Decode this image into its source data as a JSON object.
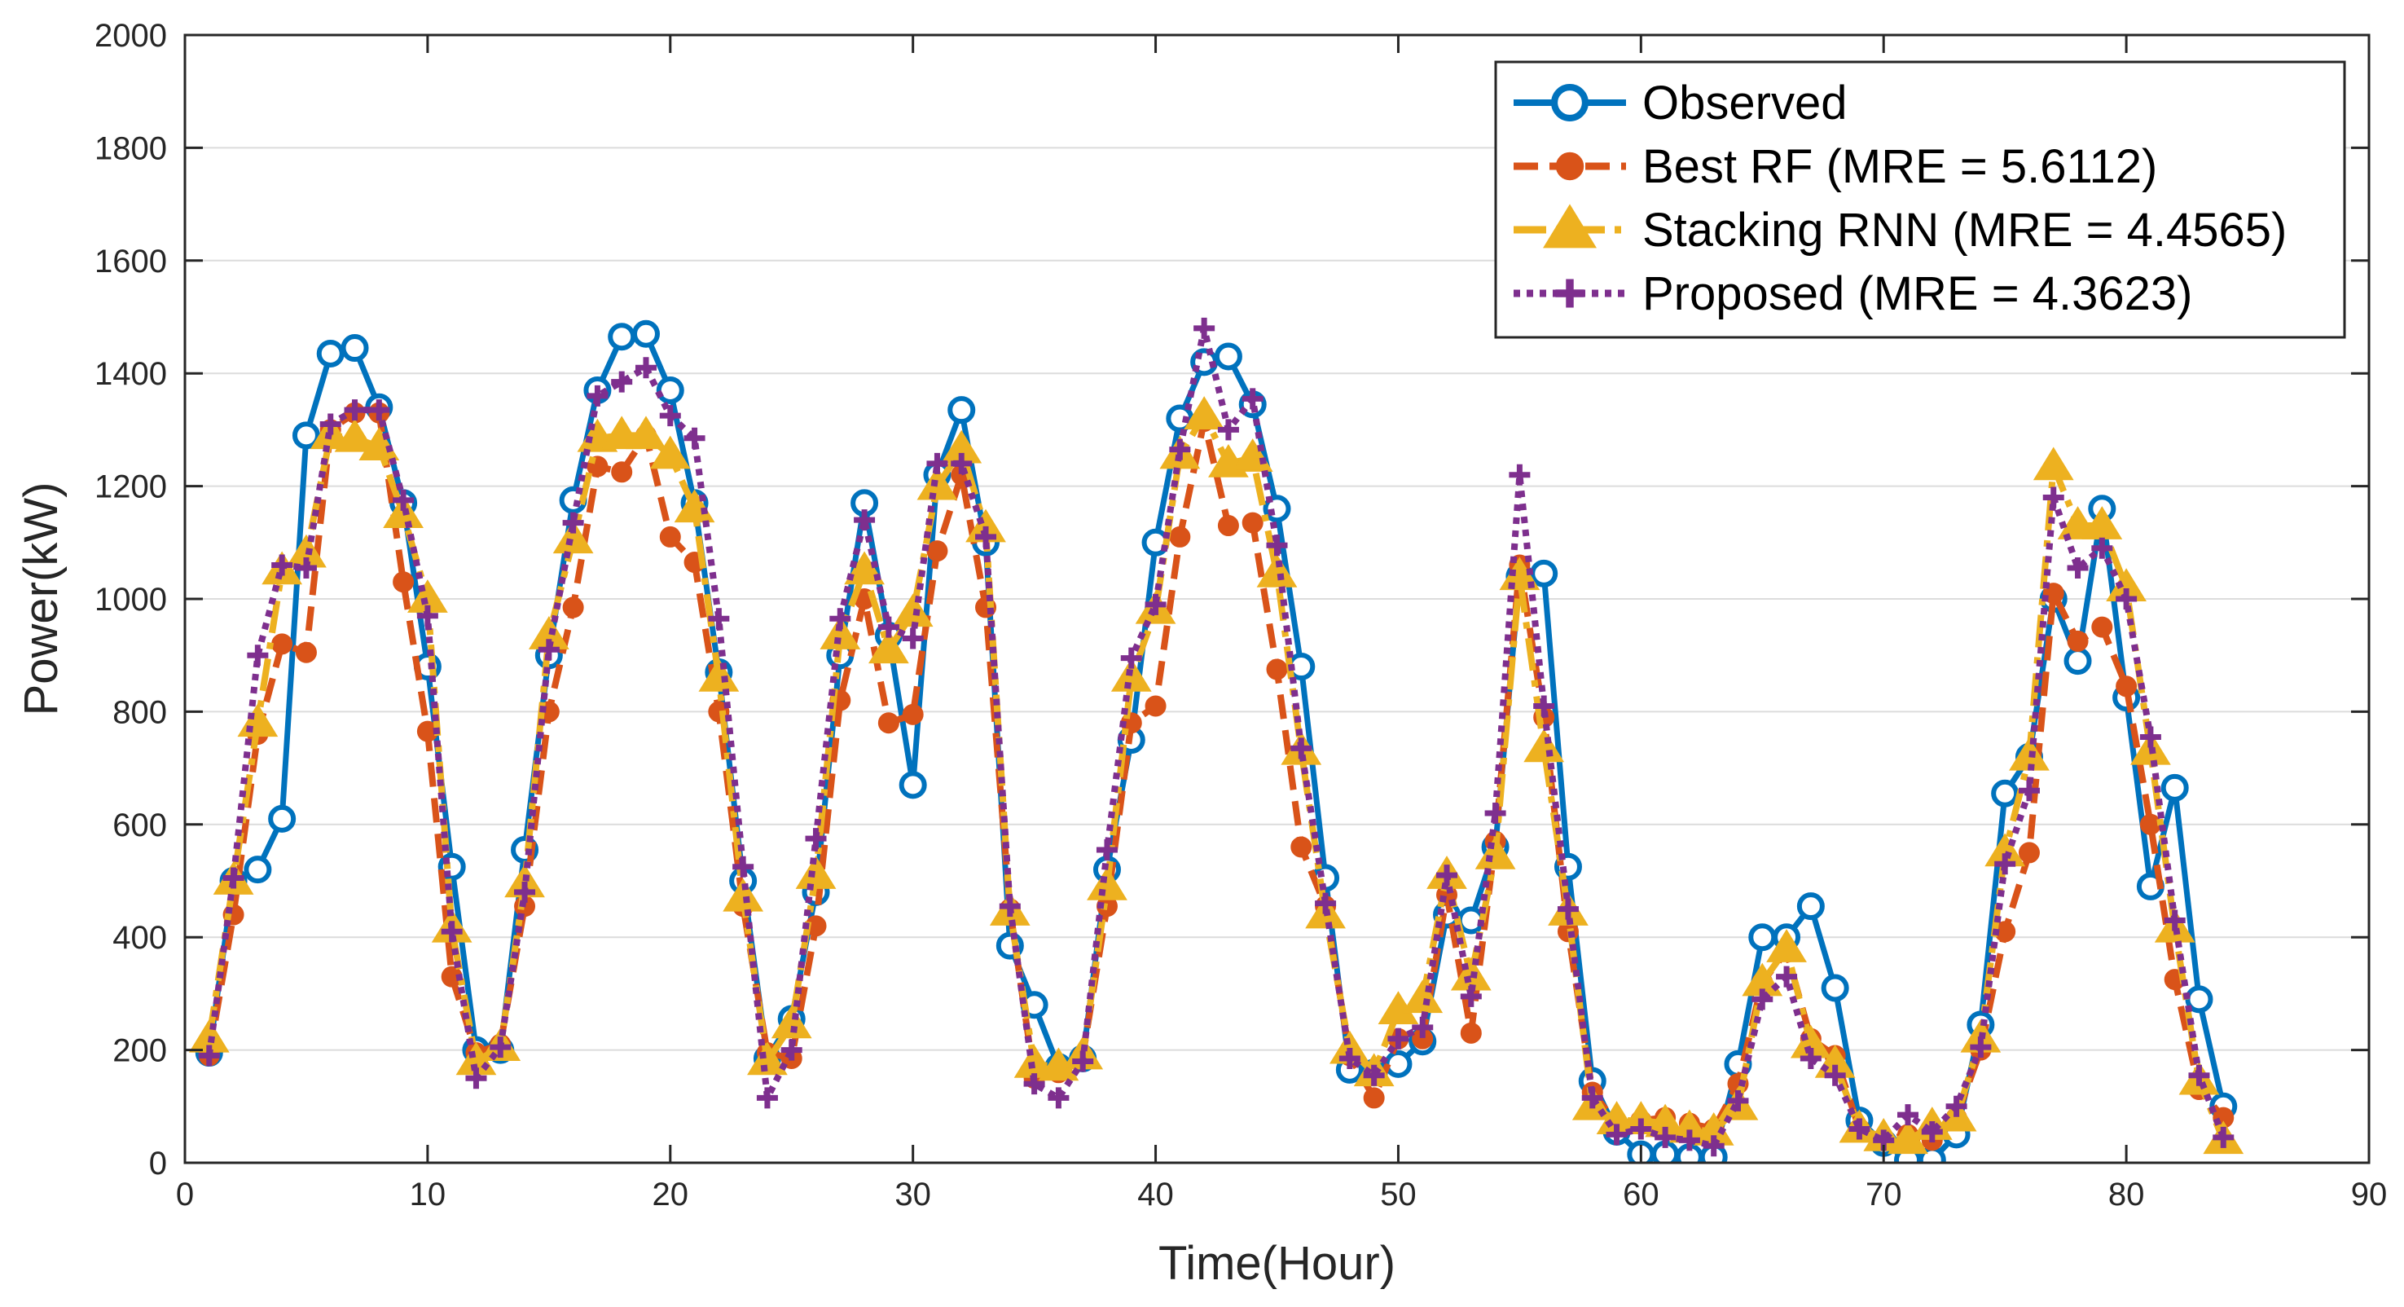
{
  "chart_data": {
    "type": "line",
    "title": "",
    "xlabel": "Time(Hour)",
    "ylabel": "Power(kW)",
    "xlim": [
      0,
      90
    ],
    "ylim": [
      0,
      2000
    ],
    "xticks": [
      0,
      10,
      20,
      30,
      40,
      50,
      60,
      70,
      80,
      90
    ],
    "yticks": [
      0,
      200,
      400,
      600,
      800,
      1000,
      1200,
      1400,
      1600,
      1800,
      2000
    ],
    "grid": "horizontal",
    "legend_position": "top-right",
    "x": [
      1,
      2,
      3,
      4,
      5,
      6,
      7,
      8,
      9,
      10,
      11,
      12,
      13,
      14,
      15,
      16,
      17,
      18,
      19,
      20,
      21,
      22,
      23,
      24,
      25,
      26,
      27,
      28,
      29,
      30,
      31,
      32,
      33,
      34,
      35,
      36,
      37,
      38,
      39,
      40,
      41,
      42,
      43,
      44,
      45,
      46,
      47,
      48,
      49,
      50,
      51,
      52,
      53,
      54,
      55,
      56,
      57,
      58,
      59,
      60,
      61,
      62,
      63,
      64,
      65,
      66,
      67,
      68,
      69,
      70,
      71,
      72,
      73,
      74,
      75,
      76,
      77,
      78,
      79,
      80,
      81,
      82,
      83,
      84
    ],
    "series": [
      {
        "name": "Observed",
        "color": "#0072BD",
        "marker": "circle",
        "line": "solid",
        "values": [
          195,
          500,
          520,
          610,
          1290,
          1435,
          1445,
          1340,
          1170,
          880,
          525,
          200,
          200,
          555,
          900,
          1175,
          1370,
          1465,
          1470,
          1370,
          1170,
          870,
          500,
          185,
          255,
          480,
          900,
          1170,
          935,
          670,
          1220,
          1335,
          1100,
          385,
          280,
          170,
          185,
          520,
          750,
          1100,
          1320,
          1420,
          1430,
          1345,
          1160,
          880,
          505,
          165,
          160,
          175,
          215,
          440,
          430,
          560,
          1040,
          1045,
          525,
          145,
          55,
          15,
          15,
          10,
          10,
          175,
          400,
          400,
          455,
          310,
          75,
          35,
          5,
          5,
          50,
          245,
          655,
          720,
          1000,
          890,
          1160,
          825,
          490,
          665,
          290,
          100
        ]
      },
      {
        "name": "Best RF (MRE = 5.6112)",
        "color": "#D95319",
        "marker": "circle-filled",
        "line": "dashed",
        "values": [
          190,
          440,
          760,
          920,
          905,
          1300,
          1330,
          1330,
          1030,
          765,
          330,
          195,
          210,
          455,
          800,
          985,
          1235,
          1225,
          1290,
          1110,
          1065,
          800,
          455,
          195,
          185,
          420,
          820,
          1000,
          780,
          795,
          1085,
          1220,
          985,
          450,
          150,
          160,
          190,
          455,
          780,
          810,
          1110,
          1315,
          1130,
          1135,
          875,
          560,
          455,
          190,
          115,
          220,
          220,
          475,
          230,
          570,
          1060,
          790,
          410,
          125,
          70,
          75,
          80,
          70,
          60,
          140,
          320,
          375,
          220,
          190,
          60,
          40,
          50,
          40,
          80,
          200,
          410,
          550,
          1010,
          925,
          950,
          845,
          600,
          325,
          130,
          80
        ]
      },
      {
        "name": "Stacking RNN (MRE = 4.4565)",
        "color": "#EDB120",
        "marker": "triangle",
        "line": "dashdot",
        "values": [
          220,
          500,
          780,
          1050,
          1080,
          1290,
          1285,
          1270,
          1150,
          1000,
          415,
          180,
          205,
          495,
          935,
          1105,
          1285,
          1290,
          1290,
          1255,
          1160,
          860,
          470,
          180,
          245,
          510,
          935,
          1050,
          910,
          975,
          1200,
          1265,
          1125,
          445,
          175,
          170,
          190,
          490,
          860,
          980,
          1255,
          1325,
          1240,
          1250,
          1045,
          730,
          440,
          200,
          160,
          270,
          290,
          510,
          330,
          545,
          1040,
          735,
          445,
          100,
          75,
          75,
          70,
          60,
          55,
          100,
          320,
          380,
          210,
          175,
          60,
          45,
          40,
          65,
          80,
          220,
          550,
          720,
          1235,
          1130,
          1130,
          1020,
          730,
          415,
          145,
          40
        ]
      },
      {
        "name": "Proposed (MRE = 4.3623)",
        "color": "#7E2F8E",
        "marker": "plus",
        "line": "dotted",
        "values": [
          190,
          505,
          900,
          1060,
          1055,
          1310,
          1335,
          1335,
          1175,
          970,
          410,
          150,
          205,
          480,
          910,
          1135,
          1360,
          1385,
          1410,
          1325,
          1285,
          965,
          525,
          115,
          200,
          575,
          965,
          1140,
          950,
          930,
          1240,
          1240,
          1110,
          455,
          140,
          115,
          180,
          555,
          895,
          990,
          1265,
          1480,
          1300,
          1355,
          1095,
          735,
          460,
          185,
          155,
          220,
          240,
          510,
          295,
          620,
          1220,
          810,
          450,
          115,
          50,
          60,
          45,
          40,
          30,
          110,
          290,
          330,
          185,
          155,
          60,
          40,
          85,
          55,
          100,
          205,
          530,
          660,
          1180,
          1055,
          1090,
          1000,
          755,
          430,
          155,
          45
        ]
      }
    ]
  }
}
